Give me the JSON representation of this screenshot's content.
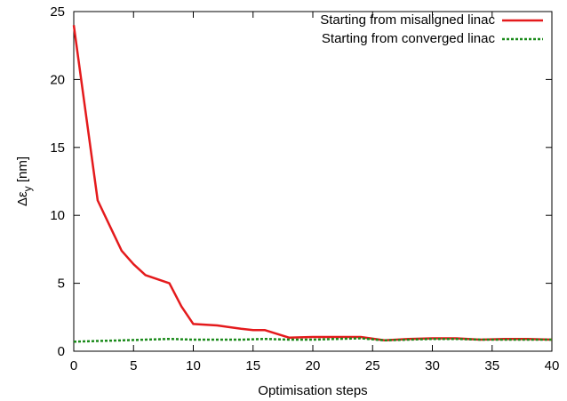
{
  "chart_data": {
    "type": "line",
    "title": "",
    "xlabel": "Optimisation steps",
    "ylabel": "Δε_y [nm]",
    "ylabel_parts": {
      "base": "Δε",
      "sub": "y",
      "unit": " [nm]"
    },
    "xlim": [
      0,
      40
    ],
    "ylim": [
      0,
      25
    ],
    "xticks": [
      0,
      5,
      10,
      15,
      20,
      25,
      30,
      35,
      40
    ],
    "yticks": [
      0,
      5,
      10,
      15,
      20,
      25
    ],
    "grid": false,
    "legend_position": "top-right",
    "series": [
      {
        "name": "Starting from misaligned linac",
        "color": "#e41a1c",
        "style": "solid",
        "points": [
          [
            0,
            24.0
          ],
          [
            2,
            11.1
          ],
          [
            4,
            7.4
          ],
          [
            5,
            6.4
          ],
          [
            6,
            5.6
          ],
          [
            8,
            5.0
          ],
          [
            9,
            3.3
          ],
          [
            10,
            2.0
          ],
          [
            12,
            1.9
          ],
          [
            14,
            1.65
          ],
          [
            15,
            1.55
          ],
          [
            16,
            1.55
          ],
          [
            18,
            1.0
          ],
          [
            20,
            1.05
          ],
          [
            22,
            1.05
          ],
          [
            24,
            1.05
          ],
          [
            26,
            0.8
          ],
          [
            28,
            0.9
          ],
          [
            30,
            0.95
          ],
          [
            32,
            0.95
          ],
          [
            34,
            0.85
          ],
          [
            36,
            0.9
          ],
          [
            38,
            0.9
          ],
          [
            40,
            0.85
          ]
        ]
      },
      {
        "name": "Starting from converged linac",
        "color": "#1a8a1a",
        "style": "dotted",
        "points": [
          [
            0,
            0.7
          ],
          [
            2,
            0.75
          ],
          [
            4,
            0.8
          ],
          [
            6,
            0.85
          ],
          [
            8,
            0.9
          ],
          [
            10,
            0.85
          ],
          [
            12,
            0.85
          ],
          [
            14,
            0.85
          ],
          [
            16,
            0.9
          ],
          [
            18,
            0.85
          ],
          [
            20,
            0.85
          ],
          [
            22,
            0.9
          ],
          [
            24,
            0.95
          ],
          [
            26,
            0.8
          ],
          [
            28,
            0.85
          ],
          [
            30,
            0.9
          ],
          [
            32,
            0.9
          ],
          [
            34,
            0.85
          ],
          [
            36,
            0.85
          ],
          [
            38,
            0.85
          ],
          [
            40,
            0.85
          ]
        ]
      }
    ]
  }
}
